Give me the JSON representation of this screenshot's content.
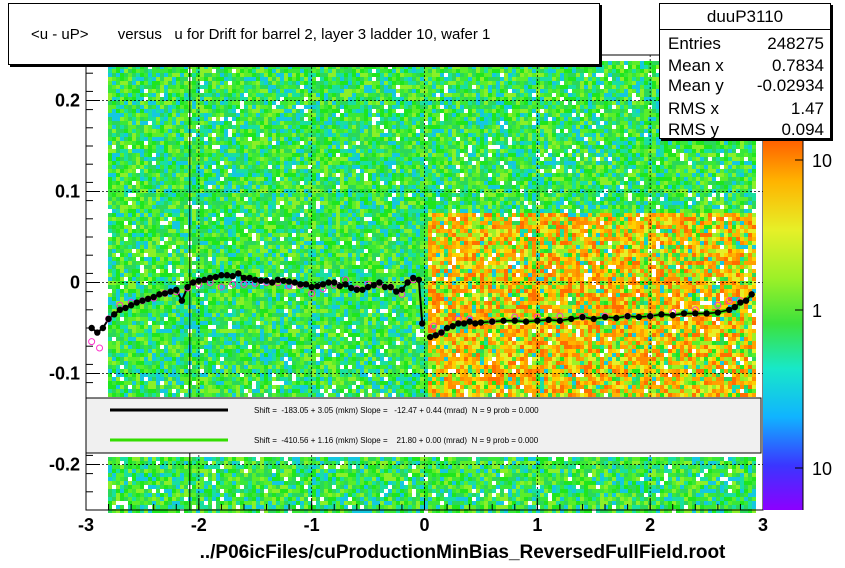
{
  "title": "<u - uP>       versus   u for Drift for barrel 2, layer 3 ladder 10, wafer 1",
  "stats": {
    "name": "duuP3110",
    "rows": [
      {
        "k": "Entries",
        "v": "248275"
      },
      {
        "k": "Mean x",
        "v": "0.7834"
      },
      {
        "k": "Mean y",
        "v": "-0.02934"
      },
      {
        "k": "RMS x",
        "v": "1.47"
      },
      {
        "k": "RMS y",
        "v": "0.094"
      }
    ]
  },
  "footer": "../P06icFiles/cuProductionMinBias_ReversedFullField.root",
  "colors": {
    "black_fit": "#000000",
    "green_fit": "#33dd00",
    "markers_open": "#ff33cc"
  },
  "chart_data": {
    "type": "heatmap",
    "title": "<u - uP>       versus   u for Drift for barrel 2, layer 3 ladder 10, wafer 1",
    "xlabel": "",
    "ylabel": "",
    "xlim": [
      -3,
      3
    ],
    "ylim": [
      -0.25,
      0.25
    ],
    "x_ticks": [
      "-3",
      "-2",
      "-1",
      "0",
      "1",
      "2",
      "3"
    ],
    "y_ticks": [
      "-0.2",
      "-0.1",
      "0",
      "0.1",
      "0.2"
    ],
    "colorbar_ticks": [
      "10",
      "1",
      "10"
    ],
    "grid": true,
    "legend": [
      {
        "color": "#000000",
        "text": "Shift =  -183.05 + 3.05 (mkm) Slope =   -12.47 + 0.44 (mrad)  N = 9 prob = 0.000"
      },
      {
        "color": "#33dd00",
        "text": "Shift =  -410.56 + 1.16 (mkm) Slope =    21.80 + 0.00 (mrad)  N = 9 prob = 0.000"
      }
    ],
    "series": [
      {
        "name": "black",
        "x": [
          -2.95,
          -2.9,
          -2.85,
          -2.8,
          -2.75,
          -2.7,
          -2.65,
          -2.6,
          -2.55,
          -2.5,
          -2.45,
          -2.4,
          -2.35,
          -2.3,
          -2.25,
          -2.2,
          -2.15,
          -2.1,
          -2.05,
          -2.0,
          -1.95,
          -1.9,
          -1.85,
          -1.8,
          -1.75,
          -1.7,
          -1.65,
          -1.6,
          -1.55,
          -1.5,
          -1.45,
          -1.4,
          -1.35,
          -1.3,
          -1.25,
          -1.2,
          -1.15,
          -1.1,
          -1.05,
          -1.0,
          -0.95,
          -0.9,
          -0.85,
          -0.8,
          -0.75,
          -0.7,
          -0.65,
          -0.6,
          -0.55,
          -0.5,
          -0.45,
          -0.4,
          -0.35,
          -0.3,
          -0.25,
          -0.2,
          -0.15,
          -0.1,
          -0.05,
          -0.02,
          0.05,
          0.1,
          0.15,
          0.2,
          0.25,
          0.3,
          0.35,
          0.4,
          0.45,
          0.5,
          0.6,
          0.7,
          0.8,
          0.9,
          1.0,
          1.1,
          1.2,
          1.3,
          1.4,
          1.5,
          1.6,
          1.7,
          1.8,
          1.9,
          2.0,
          2.1,
          2.2,
          2.3,
          2.4,
          2.5,
          2.6,
          2.7,
          2.75,
          2.8,
          2.85,
          2.9
        ],
        "y": [
          -0.05,
          -0.055,
          -0.05,
          -0.04,
          -0.035,
          -0.03,
          -0.028,
          -0.025,
          -0.022,
          -0.02,
          -0.018,
          -0.016,
          -0.013,
          -0.012,
          -0.01,
          -0.008,
          -0.02,
          -0.005,
          0.0,
          0.002,
          0.003,
          0.005,
          0.006,
          0.008,
          0.008,
          0.007,
          0.01,
          0.005,
          0.005,
          0.003,
          0.002,
          0.002,
          0.0,
          0.003,
          0.002,
          0.001,
          0.0,
          -0.002,
          -0.002,
          -0.005,
          -0.004,
          -0.002,
          0.0,
          0.0,
          -0.004,
          -0.002,
          -0.006,
          -0.008,
          -0.008,
          -0.005,
          -0.003,
          0.0,
          -0.005,
          -0.005,
          -0.01,
          -0.008,
          0.0,
          0.005,
          0.003,
          -0.045,
          -0.06,
          -0.058,
          -0.055,
          -0.05,
          -0.048,
          -0.045,
          -0.045,
          -0.043,
          -0.045,
          -0.044,
          -0.043,
          -0.042,
          -0.042,
          -0.043,
          -0.042,
          -0.041,
          -0.042,
          -0.04,
          -0.038,
          -0.04,
          -0.038,
          -0.039,
          -0.037,
          -0.038,
          -0.037,
          -0.035,
          -0.036,
          -0.034,
          -0.034,
          -0.034,
          -0.033,
          -0.03,
          -0.027,
          -0.022,
          -0.02,
          -0.013
        ]
      },
      {
        "name": "magenta",
        "x": [
          -2.95,
          -2.88,
          -2.8,
          -2.7,
          -2.6,
          -2.5,
          -2.4,
          -2.3,
          -2.2,
          -2.1,
          -2.0,
          -1.9,
          -1.8,
          -1.7,
          -1.6,
          -1.5,
          -1.4,
          -1.3,
          -1.2,
          -1.1,
          -1.0,
          -0.9,
          -0.8,
          -0.7,
          -0.6,
          -0.5,
          -0.4,
          -0.3,
          -0.2,
          -0.1,
          0.08,
          0.15,
          0.3,
          0.4,
          0.6,
          0.8,
          1.0,
          1.2,
          1.4,
          1.6,
          1.8,
          2.0,
          2.2,
          2.4,
          2.6,
          2.7,
          2.8
        ],
        "y": [
          -0.065,
          -0.072,
          -0.04,
          -0.025,
          -0.022,
          -0.02,
          -0.017,
          -0.012,
          -0.01,
          -0.006,
          -0.002,
          0.0,
          -0.005,
          -0.002,
          -0.002,
          -0.001,
          0.0,
          0.0,
          -0.004,
          -0.003,
          -0.012,
          -0.007,
          -0.003,
          0.003,
          -0.007,
          -0.002,
          -0.002,
          -0.005,
          -0.013,
          0.003,
          -0.048,
          -0.055,
          -0.04,
          -0.04,
          -0.043,
          -0.038,
          -0.038,
          -0.037,
          -0.038,
          -0.037,
          -0.037,
          -0.037,
          -0.033,
          -0.03,
          -0.025,
          -0.02,
          -0.02
        ]
      }
    ]
  }
}
